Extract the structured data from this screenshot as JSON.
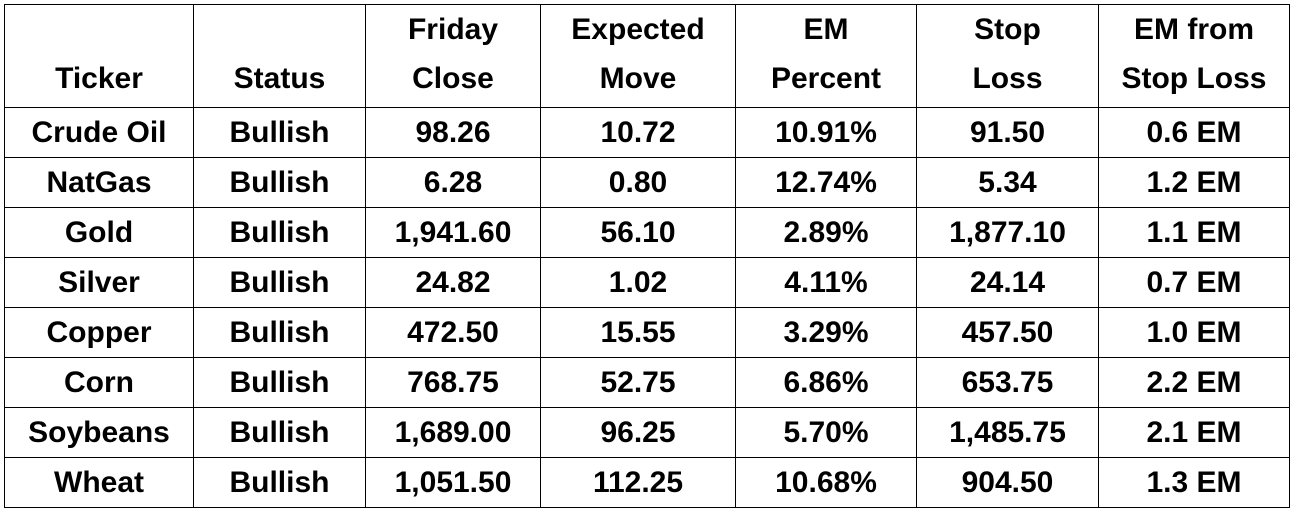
{
  "table": {
    "headers": [
      {
        "line1": "",
        "line2": "Ticker"
      },
      {
        "line1": "",
        "line2": "Status"
      },
      {
        "line1": "Friday",
        "line2": "Close"
      },
      {
        "line1": "Expected",
        "line2": "Move"
      },
      {
        "line1": "EM",
        "line2": "Percent"
      },
      {
        "line1": "Stop",
        "line2": "Loss"
      },
      {
        "line1": "EM from",
        "line2": "Stop Loss"
      }
    ],
    "rows": [
      [
        "Crude Oil",
        "Bullish",
        "98.26",
        "10.72",
        "10.91%",
        "91.50",
        "0.6 EM"
      ],
      [
        "NatGas",
        "Bullish",
        "6.28",
        "0.80",
        "12.74%",
        "5.34",
        "1.2 EM"
      ],
      [
        "Gold",
        "Bullish",
        "1,941.60",
        "56.10",
        "2.89%",
        "1,877.10",
        "1.1 EM"
      ],
      [
        "Silver",
        "Bullish",
        "24.82",
        "1.02",
        "4.11%",
        "24.14",
        "0.7 EM"
      ],
      [
        "Copper",
        "Bullish",
        "472.50",
        "15.55",
        "3.29%",
        "457.50",
        "1.0 EM"
      ],
      [
        "Corn",
        "Bullish",
        "768.75",
        "52.75",
        "6.86%",
        "653.75",
        "2.2 EM"
      ],
      [
        "Soybeans",
        "Bullish",
        "1,689.00",
        "96.25",
        "5.70%",
        "1,485.75",
        "2.1 EM"
      ],
      [
        "Wheat",
        "Bullish",
        "1,051.50",
        "112.25",
        "10.68%",
        "904.50",
        "1.3 EM"
      ]
    ]
  }
}
